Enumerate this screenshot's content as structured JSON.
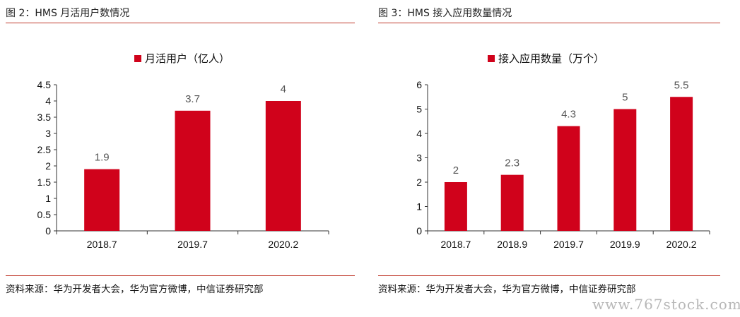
{
  "panels": [
    {
      "figure_title": "图 2：HMS 月活用户数情况",
      "source": "资料来源：华为开发者大会，华为官方微博，中信证券研究部"
    },
    {
      "figure_title": "图 3：HMS 接入应用数量情况",
      "source": "资料来源：华为开发者大会，华为官方微博，中信证券研究部"
    }
  ],
  "watermark": "www.767stock.com",
  "colors": {
    "bar": "#d0021b",
    "rule": "#c0392b",
    "axis": "#333333",
    "label": "#555555"
  },
  "chart_data": [
    {
      "type": "bar",
      "title": "",
      "legend": "月活用户（亿人）",
      "legend_position": "top",
      "categories": [
        "2018.7",
        "2019.7",
        "2020.2"
      ],
      "series": [
        {
          "name": "月活用户（亿人）",
          "values": [
            1.9,
            3.7,
            4
          ]
        }
      ],
      "data_labels": [
        "1.9",
        "3.7",
        "4"
      ],
      "y_ticks": [
        "0",
        "0.5",
        "1",
        "1.5",
        "2",
        "2.5",
        "3",
        "3.5",
        "4",
        "4.5"
      ],
      "ylim": [
        0,
        4.5
      ],
      "grid": false
    },
    {
      "type": "bar",
      "title": "",
      "legend": "接入应用数量（万个）",
      "legend_position": "top",
      "categories": [
        "2018.7",
        "2018.9",
        "2019.7",
        "2019.9",
        "2020.2"
      ],
      "series": [
        {
          "name": "接入应用数量（万个）",
          "values": [
            2,
            2.3,
            4.3,
            5,
            5.5
          ]
        }
      ],
      "data_labels": [
        "2",
        "2.3",
        "4.3",
        "5",
        "5.5"
      ],
      "y_ticks": [
        "0",
        "1",
        "2",
        "3",
        "4",
        "5",
        "6"
      ],
      "ylim": [
        0,
        6
      ],
      "grid": false
    }
  ]
}
